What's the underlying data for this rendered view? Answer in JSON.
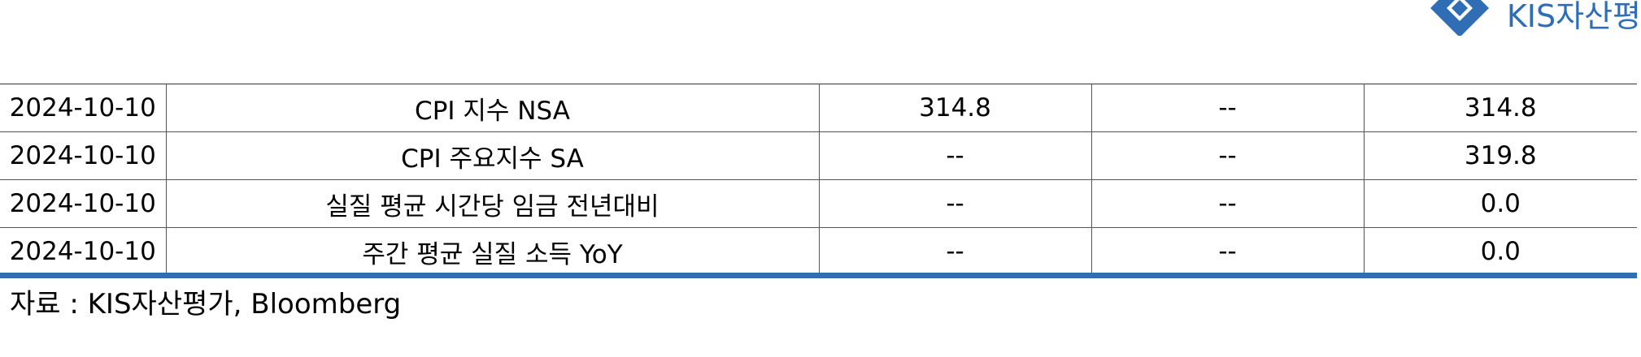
{
  "logo": {
    "text": "KIS자산평",
    "color": "#2f6db5",
    "icon": "diamond-logo-icon"
  },
  "table": {
    "rows": [
      [
        "2024-10-10",
        "CPI 지수 NSA",
        "314.8",
        "--",
        "314.8"
      ],
      [
        "2024-10-10",
        "CPI 주요지수 SA",
        "--",
        "--",
        "319.8"
      ],
      [
        "2024-10-10",
        "실질 평균 시간당 임금 전년대비",
        "--",
        "--",
        "0.0"
      ],
      [
        "2024-10-10",
        "주간 평균 실질 소득 YoY",
        "--",
        "--",
        "0.0"
      ]
    ]
  },
  "accent_color": "#2f6db5",
  "source_note": "자료 : KIS자산평가, Bloomberg"
}
